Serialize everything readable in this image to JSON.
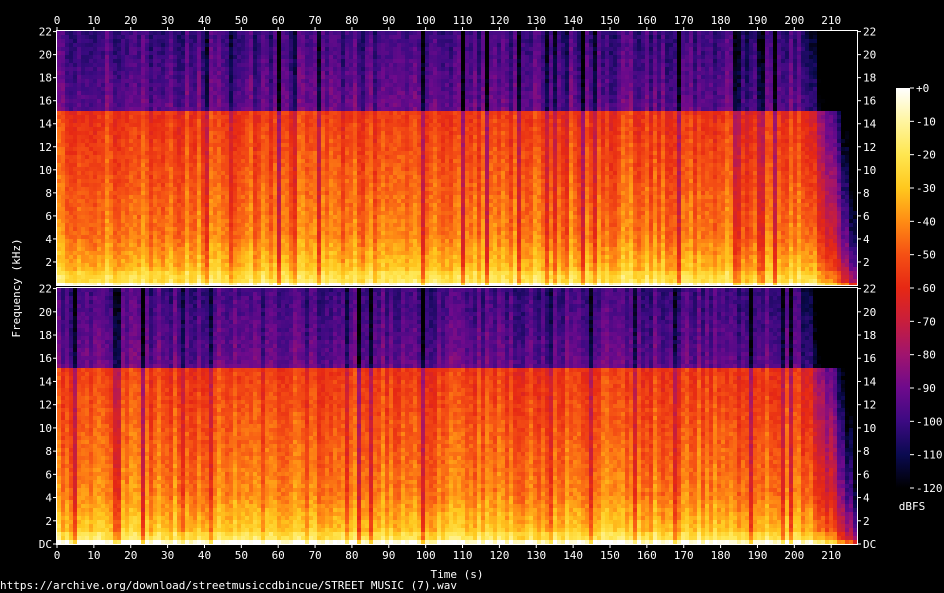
{
  "chart_data": {
    "type": "heatmap",
    "subtype": "spectrogram",
    "xlabel": "Time (s)",
    "ylabel": "Frequency (kHz)",
    "x_ticks": [
      0,
      10,
      20,
      30,
      40,
      50,
      60,
      70,
      80,
      90,
      100,
      110,
      120,
      130,
      140,
      150,
      160,
      170,
      180,
      190,
      200,
      210
    ],
    "xlim": [
      0,
      217
    ],
    "duration_s": 216,
    "channels": [
      {
        "y_tick_labels": [
          "22",
          "20",
          "18",
          "16",
          "14",
          "12",
          "10",
          "8",
          "6",
          "4",
          "2"
        ],
        "y_tick_values": [
          22,
          20,
          18,
          16,
          14,
          12,
          10,
          8,
          6,
          4,
          2
        ]
      },
      {
        "y_tick_labels": [
          "22",
          "20",
          "18",
          "16",
          "14",
          "12",
          "10",
          "8",
          "6",
          "4",
          "2",
          "DC"
        ],
        "y_tick_values": [
          22,
          20,
          18,
          16,
          14,
          12,
          10,
          8,
          6,
          4,
          2,
          0
        ]
      }
    ],
    "ylim_khz": [
      0,
      22.05
    ],
    "lowpass_cutoff_khz": 15.2,
    "fade_out_start_s": 200,
    "colorbar": {
      "label": "dBFS",
      "tick_labels": [
        "+0",
        "-10",
        "-20",
        "-30",
        "-40",
        "-50",
        "-60",
        "-70",
        "-80",
        "-90",
        "-100",
        "-110",
        "-120"
      ],
      "tick_values": [
        0,
        -10,
        -20,
        -30,
        -40,
        -50,
        -60,
        -70,
        -80,
        -90,
        -100,
        -110,
        -120
      ],
      "range_db": [
        -120,
        0
      ],
      "colors": [
        "#000000",
        "#0a0a50",
        "#3c0a82",
        "#6e0a8c",
        "#a0146e",
        "#c81e3c",
        "#e62814",
        "#f55014",
        "#ff8c14",
        "#ffc81e",
        "#ffe650",
        "#fff5a0",
        "#ffffff"
      ]
    }
  },
  "source_url": "https://archive.org/download/streetmusiccdbincue/STREET MUSIC (7).wav"
}
